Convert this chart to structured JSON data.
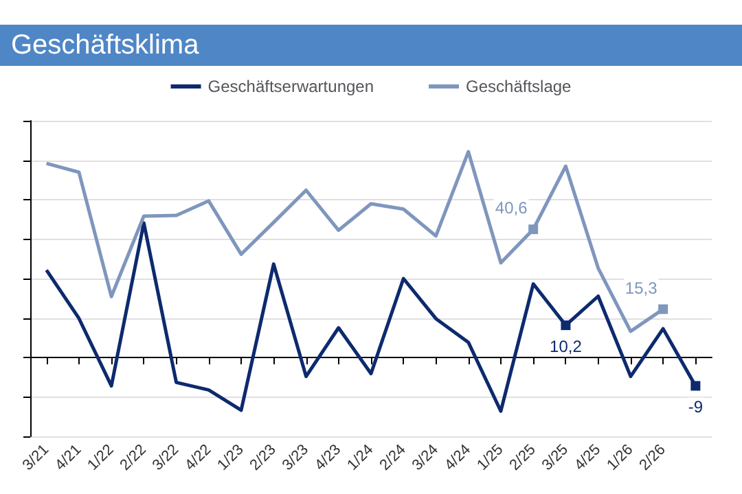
{
  "chart_data": {
    "type": "line",
    "title": "Geschäftsklima",
    "categories": [
      "3/21",
      "4/21",
      "1/22",
      "2/22",
      "3/22",
      "4/22",
      "1/23",
      "2/23",
      "3/23",
      "4/23",
      "1/24",
      "2/24",
      "3/24",
      "4/24",
      "1/25",
      "2/25",
      "3/25",
      "4/25",
      "1/26",
      "2/26",
      null
    ],
    "series": [
      {
        "name": "Geschäftserwartungen",
        "color": "#0d2a6e",
        "values": [
          27.7,
          12.4,
          -9.0,
          42.6,
          -7.9,
          -10.3,
          -16.7,
          29.6,
          -6.0,
          9.4,
          -5.1,
          25.0,
          12.3,
          4.8,
          -17.0,
          23.3,
          10.2,
          19.4,
          -6.0,
          9.1,
          -9
        ],
        "value_labels": [
          null,
          null,
          null,
          null,
          null,
          null,
          null,
          null,
          null,
          null,
          null,
          null,
          null,
          null,
          null,
          null,
          "10,2",
          null,
          null,
          null,
          "-9"
        ]
      },
      {
        "name": "Geschäftslage",
        "color": "#7f96bd",
        "values": [
          61.5,
          58.7,
          19.3,
          44.8,
          45.0,
          49.6,
          32.7,
          42.8,
          53.0,
          40.3,
          48.7,
          47.0,
          38.5,
          65.2,
          30.0,
          40.6,
          60.6,
          28.3,
          8.3,
          15.3,
          null
        ],
        "value_labels": [
          null,
          null,
          null,
          null,
          null,
          null,
          null,
          null,
          null,
          null,
          null,
          null,
          null,
          null,
          null,
          "40,6",
          null,
          null,
          null,
          "15,3",
          null
        ]
      }
    ],
    "ylim": [
      -25,
      75
    ],
    "yticks": [
      {
        "value": -25,
        "label": null
      },
      {
        "value": -12.5,
        "label": null
      },
      {
        "value": 0,
        "label": null
      },
      {
        "value": 12.5,
        "label": null
      },
      {
        "value": 25,
        "label": null
      },
      {
        "value": 37.5,
        "label": null
      },
      {
        "value": 50,
        "label": null
      },
      {
        "value": 62.5,
        "label": null
      },
      {
        "value": 75,
        "label": null
      }
    ],
    "tick_labels": "x",
    "grid": "y",
    "legend": "top",
    "marker": "none",
    "line_style": "solid"
  }
}
